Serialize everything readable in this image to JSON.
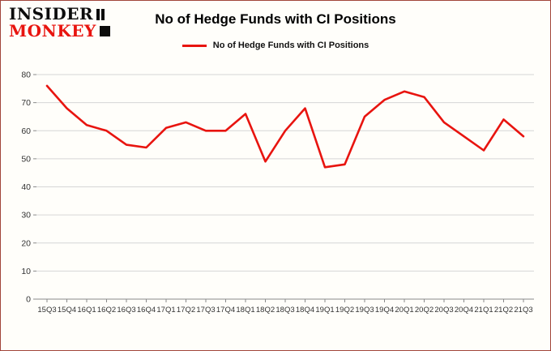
{
  "logo": {
    "line1": "INSIDER",
    "line2": "MONKEY"
  },
  "header": {
    "title": "No of Hedge Funds with CI Positions"
  },
  "legend": {
    "label": "No of Hedge Funds with CI Positions"
  },
  "colors": {
    "accent_red": "#e8140f",
    "border": "#a2453a",
    "grid": "#d6d6d6",
    "axis": "#8a8a8a",
    "tick_text": "#333333",
    "background": "#fffefa"
  },
  "chart_data": {
    "type": "line",
    "title": "No of Hedge Funds with CI Positions",
    "xlabel": "",
    "ylabel": "",
    "ylim": [
      0,
      80
    ],
    "yticks": [
      0,
      10,
      20,
      30,
      40,
      50,
      60,
      70,
      80
    ],
    "grid": "horizontal",
    "legend_position": "top",
    "categories": [
      "15Q3",
      "15Q4",
      "16Q1",
      "16Q2",
      "16Q3",
      "16Q4",
      "17Q1",
      "17Q2",
      "17Q3",
      "17Q4",
      "18Q1",
      "18Q2",
      "18Q3",
      "18Q4",
      "19Q1",
      "19Q2",
      "19Q3",
      "19Q4",
      "20Q1",
      "20Q2",
      "20Q3",
      "20Q4",
      "21Q1",
      "21Q2",
      "21Q3"
    ],
    "series": [
      {
        "name": "No of Hedge Funds with CI Positions",
        "color": "#e8140f",
        "values": [
          76,
          68,
          62,
          60,
          55,
          54,
          61,
          63,
          60,
          60,
          66,
          49,
          60,
          68,
          47,
          48,
          65,
          71,
          74,
          72,
          63,
          58,
          53,
          64,
          58
        ]
      }
    ]
  }
}
